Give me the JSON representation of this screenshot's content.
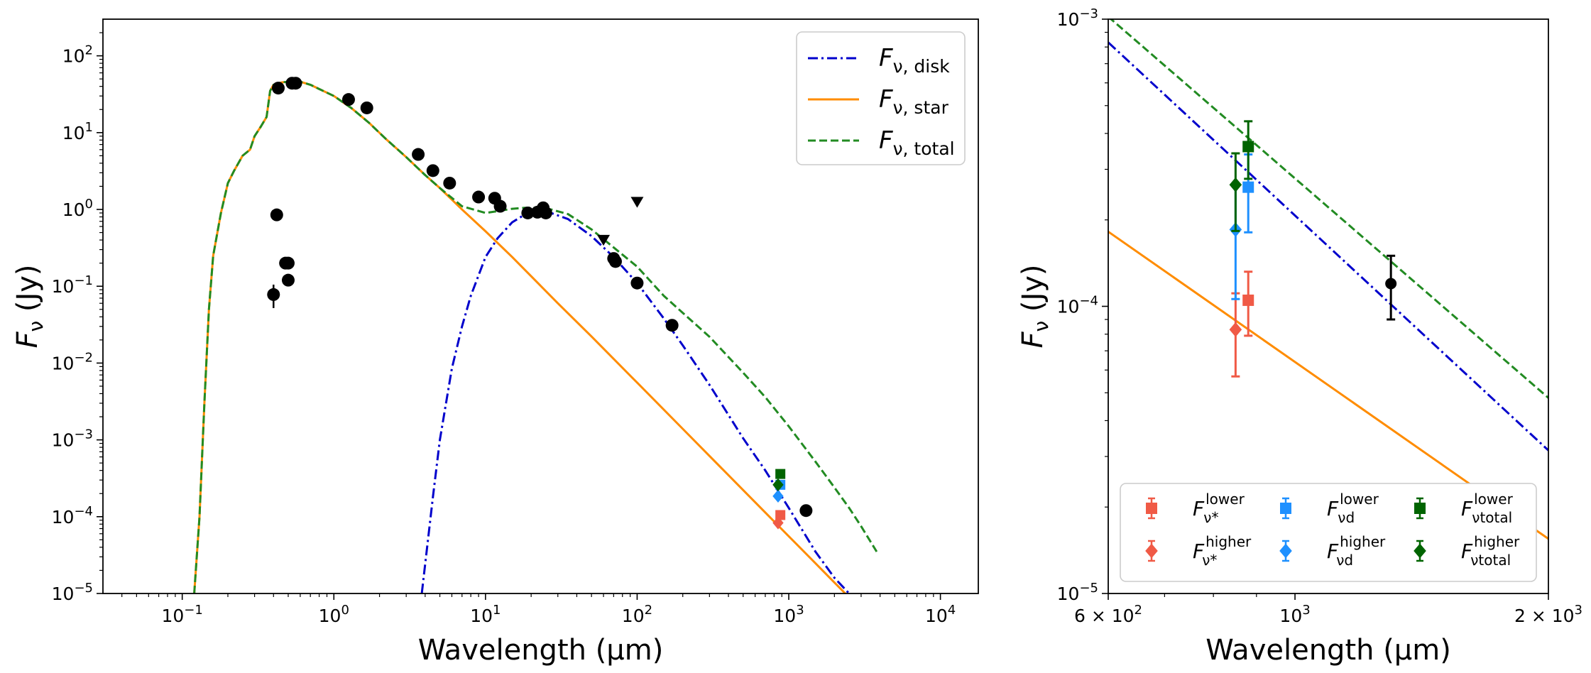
{
  "chart_data": [
    {
      "type": "line",
      "panel": "left",
      "xscale": "log",
      "yscale": "log",
      "xlim": [
        0.03,
        17782
      ],
      "ylim": [
        1e-05,
        300
      ],
      "xlabel": "Wavelength (μm)",
      "ylabel": "Fν (Jy)",
      "xtick_labels": [
        {
          "base": "10",
          "exp": "−1"
        },
        {
          "base": "10",
          "exp": "0"
        },
        {
          "base": "10",
          "exp": "1"
        },
        {
          "base": "10",
          "exp": "2"
        },
        {
          "base": "10",
          "exp": "3"
        },
        {
          "base": "10",
          "exp": "4"
        }
      ],
      "xtick_values": [
        0.1,
        1,
        10,
        100,
        1000,
        10000
      ],
      "ytick_labels": [
        {
          "base": "10",
          "exp": "−5"
        },
        {
          "base": "10",
          "exp": "−4"
        },
        {
          "base": "10",
          "exp": "−3"
        },
        {
          "base": "10",
          "exp": "−2"
        },
        {
          "base": "10",
          "exp": "−1"
        },
        {
          "base": "10",
          "exp": "0"
        },
        {
          "base": "10",
          "exp": "1"
        },
        {
          "base": "10",
          "exp": "2"
        }
      ],
      "ytick_values": [
        1e-05,
        0.0001,
        0.001,
        0.01,
        0.1,
        1,
        10,
        100
      ],
      "legend": {
        "placement": "upper right",
        "entries": [
          {
            "main": "F",
            "sub": "ν, disk",
            "color": "#0000cc",
            "style": "dashdot"
          },
          {
            "main": "F",
            "sub": "ν, star",
            "color": "#ff8c00",
            "style": "solid"
          },
          {
            "main": "F",
            "sub": "ν, total",
            "color": "#228b22",
            "style": "dashed"
          }
        ]
      },
      "series": [
        {
          "name": "star",
          "color": "#ff8c00",
          "style": "solid",
          "x": [
            0.12,
            0.13,
            0.14,
            0.15,
            0.16,
            0.18,
            0.2,
            0.22,
            0.25,
            0.28,
            0.3,
            0.33,
            0.36,
            0.38,
            0.4,
            0.45,
            0.5,
            0.55,
            0.6,
            0.7,
            0.8,
            1.0,
            1.3,
            1.7,
            2.2,
            3,
            4,
            5,
            7,
            10,
            15,
            20,
            30,
            50,
            100,
            200,
            500,
            1000,
            2000,
            2500
          ],
          "y": [
            1e-05,
            0.0001,
            0.003,
            0.05,
            0.25,
            0.9,
            2.2,
            3.2,
            5,
            6,
            9,
            12,
            16,
            35,
            42,
            45,
            46,
            47,
            46,
            42,
            37,
            30,
            21,
            13.5,
            8.3,
            4.8,
            2.8,
            1.9,
            1.0,
            0.52,
            0.24,
            0.135,
            0.06,
            0.0222,
            0.00556,
            0.00139,
            0.000222,
            5.56e-05,
            1.39e-05,
            8.9e-06
          ]
        },
        {
          "name": "disk",
          "color": "#0000cc",
          "style": "dashdot",
          "x": [
            3.8,
            4.5,
            5,
            6,
            7,
            8,
            10,
            12,
            15,
            18,
            22,
            27,
            35,
            50,
            70,
            100,
            150,
            200,
            300,
            500,
            700,
            1000,
            1500,
            2000,
            2500,
            3000
          ],
          "y": [
            1e-05,
            0.00018,
            0.001,
            0.0085,
            0.03,
            0.075,
            0.24,
            0.42,
            0.68,
            0.85,
            0.92,
            0.9,
            0.75,
            0.45,
            0.24,
            0.11,
            0.038,
            0.017,
            0.0052,
            0.00105,
            0.0004,
            0.00013,
            3.5e-05,
            1.6e-05,
            1e-05,
            6e-06
          ]
        },
        {
          "name": "total",
          "color": "#228b22",
          "style": "dashed",
          "x": [
            0.12,
            0.13,
            0.14,
            0.15,
            0.16,
            0.18,
            0.2,
            0.22,
            0.25,
            0.28,
            0.3,
            0.33,
            0.36,
            0.38,
            0.4,
            0.45,
            0.5,
            0.55,
            0.6,
            0.7,
            0.8,
            1.0,
            1.3,
            1.7,
            2.2,
            3,
            4,
            5,
            7,
            10,
            12,
            15,
            18,
            22,
            27,
            35,
            50,
            70,
            100,
            150,
            200,
            300,
            500,
            700,
            1000,
            1500,
            2000,
            2500,
            3000,
            3800
          ],
          "y": [
            1e-05,
            0.0001,
            0.003,
            0.05,
            0.25,
            0.9,
            2.2,
            3.2,
            5,
            6,
            9,
            12,
            16,
            35,
            42,
            45,
            46,
            47,
            46,
            42,
            37,
            30,
            21,
            13.5,
            8.3,
            4.8,
            2.8,
            1.9,
            1.1,
            0.9,
            0.95,
            1.02,
            1.05,
            1.05,
            1.0,
            0.87,
            0.55,
            0.32,
            0.18,
            0.075,
            0.045,
            0.022,
            0.0075,
            0.0036,
            0.0015,
            0.00052,
            0.00024,
            0.00013,
            7.5e-05,
            3.5e-05
          ]
        }
      ],
      "photometry": [
        {
          "x": 0.4,
          "y": 0.078,
          "err": [
            0.052,
            0.105
          ]
        },
        {
          "x": 0.42,
          "y": 0.85
        },
        {
          "x": 0.43,
          "y": 38
        },
        {
          "x": 0.48,
          "y": 0.2
        },
        {
          "x": 0.5,
          "y": 0.2
        },
        {
          "x": 0.5,
          "y": 0.12
        },
        {
          "x": 0.53,
          "y": 44
        },
        {
          "x": 0.56,
          "y": 44
        },
        {
          "x": 1.25,
          "y": 27
        },
        {
          "x": 1.65,
          "y": 21
        },
        {
          "x": 3.6,
          "y": 5.2
        },
        {
          "x": 4.5,
          "y": 3.2
        },
        {
          "x": 5.8,
          "y": 2.2
        },
        {
          "x": 9,
          "y": 1.45
        },
        {
          "x": 11.5,
          "y": 1.4
        },
        {
          "x": 12.5,
          "y": 1.1
        },
        {
          "x": 19,
          "y": 0.9
        },
        {
          "x": 22,
          "y": 0.92
        },
        {
          "x": 24,
          "y": 1.05
        },
        {
          "x": 25,
          "y": 0.9
        },
        {
          "x": 70,
          "y": 0.23
        },
        {
          "x": 72,
          "y": 0.21
        },
        {
          "x": 100,
          "y": 0.11
        },
        {
          "x": 170,
          "y": 0.031
        },
        {
          "x": 1300,
          "y": 0.00012
        }
      ],
      "upper_limits": [
        {
          "x": 60,
          "y": 0.4
        },
        {
          "x": 100,
          "y": 1.25
        }
      ],
      "model_points": [
        {
          "x": 850,
          "y": 8.3e-05,
          "color": "#f05a46",
          "marker": "diamond"
        },
        {
          "x": 880,
          "y": 0.000105,
          "color": "#f05a46",
          "marker": "square"
        },
        {
          "x": 850,
          "y": 0.000185,
          "color": "#1e90ff",
          "marker": "diamond"
        },
        {
          "x": 880,
          "y": 0.00026,
          "color": "#1e90ff",
          "marker": "square"
        },
        {
          "x": 850,
          "y": 0.00026,
          "color": "#006400",
          "marker": "diamond"
        },
        {
          "x": 880,
          "y": 0.00036,
          "color": "#006400",
          "marker": "square"
        }
      ]
    },
    {
      "type": "line",
      "panel": "right",
      "xscale": "log",
      "yscale": "log",
      "xlim": [
        600,
        2000
      ],
      "ylim": [
        1e-05,
        0.001
      ],
      "xlabel": "Wavelength (μm)",
      "ylabel": "Fν (Jy)",
      "xtick_labels": [
        {
          "pre": "6 × ",
          "base": "10",
          "exp": "2"
        },
        {
          "pre": "",
          "base": "10",
          "exp": "3"
        },
        {
          "pre": "2 × ",
          "base": "10",
          "exp": "3"
        }
      ],
      "xtick_values": [
        600,
        1000,
        2000
      ],
      "ytick_labels": [
        {
          "base": "10",
          "exp": "−5"
        },
        {
          "base": "10",
          "exp": "−4"
        },
        {
          "base": "10",
          "exp": "−3"
        }
      ],
      "ytick_values": [
        1e-05,
        0.0001,
        0.001
      ],
      "legend": {
        "placement": "lower center",
        "entries": [
          {
            "main": "F",
            "sub": "ν*",
            "sup": "lower",
            "color": "#f05a46",
            "marker": "square"
          },
          {
            "main": "F",
            "sub": "ν*",
            "sup": "higher",
            "color": "#f05a46",
            "marker": "diamond"
          },
          {
            "main": "F",
            "sub": "νd",
            "sup": "lower",
            "color": "#1e90ff",
            "marker": "square"
          },
          {
            "main": "F",
            "sub": "νd",
            "sup": "higher",
            "color": "#1e90ff",
            "marker": "diamond"
          },
          {
            "main": "F",
            "sub": "νtotal",
            "sup": "lower",
            "color": "#006400",
            "marker": "square"
          },
          {
            "main": "F",
            "sub": "νtotal",
            "sup": "higher",
            "color": "#006400",
            "marker": "diamond"
          }
        ]
      },
      "series": [
        {
          "name": "star",
          "color": "#ff8c00",
          "style": "solid",
          "x": [
            600,
            2000
          ],
          "y": [
            0.000182,
            1.55e-05
          ]
        },
        {
          "name": "disk",
          "color": "#0000cc",
          "style": "dashdot",
          "x": [
            600,
            2000
          ],
          "y": [
            0.00083,
            3.15e-05
          ]
        },
        {
          "name": "total",
          "color": "#228b22",
          "style": "dashed",
          "x": [
            600,
            2000
          ],
          "y": [
            0.00102,
            4.8e-05
          ]
        }
      ],
      "points": [
        {
          "x": 850,
          "y": 8.3e-05,
          "err": [
            5.7e-05,
            0.000111
          ],
          "color": "#f05a46",
          "marker": "diamond"
        },
        {
          "x": 880,
          "y": 0.000105,
          "err": [
            7.9e-05,
            0.000132
          ],
          "color": "#f05a46",
          "marker": "square"
        },
        {
          "x": 850,
          "y": 0.000185,
          "err": [
            0.000106,
            0.000265
          ],
          "color": "#1e90ff",
          "marker": "diamond"
        },
        {
          "x": 880,
          "y": 0.00026,
          "err": [
            0.000181,
            0.000338
          ],
          "color": "#1e90ff",
          "marker": "square"
        },
        {
          "x": 850,
          "y": 0.000265,
          "err": [
            0.000183,
            0.000341
          ],
          "color": "#006400",
          "marker": "diamond"
        },
        {
          "x": 880,
          "y": 0.00036,
          "err": [
            0.000278,
            0.000441
          ],
          "color": "#006400",
          "marker": "square"
        },
        {
          "x": 1300,
          "y": 0.00012,
          "err": [
            9e-05,
            0.00015
          ],
          "color": "#000000",
          "marker": "circle"
        }
      ]
    }
  ]
}
